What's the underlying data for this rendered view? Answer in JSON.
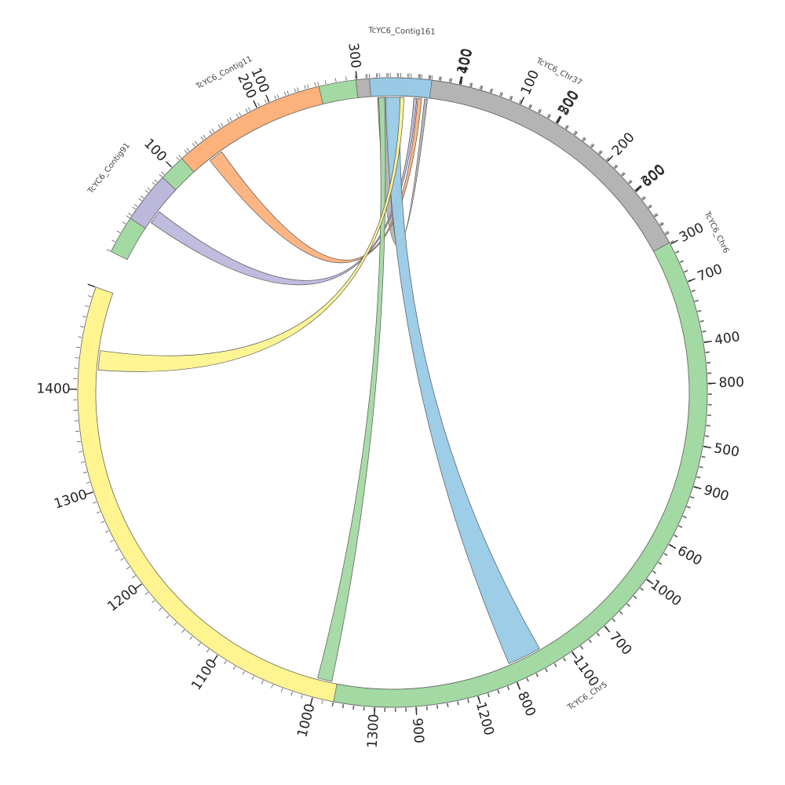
{
  "chart_data": {
    "type": "chord",
    "unit_degrees": 0.1897,
    "segments": [
      {
        "id": "TcYC6_Chr5",
        "label": "TcYC6_Chr5",
        "length": 1500,
        "color": "#fff48f",
        "start_angle": 5.0,
        "ticks": [
          100,
          200,
          300,
          400,
          500,
          600,
          700,
          800,
          900,
          1000,
          1100,
          1200,
          1300,
          1400
        ]
      },
      {
        "id": "TcYC6_Chr6",
        "label": "TcYC6_Chr6",
        "length": 1340,
        "color": "#a3d9a2",
        "start_angle": 296.6,
        "ticks": [
          100,
          200,
          300,
          400,
          500,
          600,
          700,
          800,
          900,
          1000,
          1100,
          1200,
          1300
        ]
      },
      {
        "id": "TcYC6_Contig91",
        "label": "TcYC6_Contig91",
        "length": 50,
        "color": "#bcb8dc",
        "start_angle": 303.6,
        "ticks": []
      },
      {
        "id": "TcYC6_Contig11",
        "label": "TcYC6_Contig11",
        "length": 150,
        "color": "#fdb27c",
        "start_angle": 318.0,
        "ticks": [
          100
        ]
      },
      {
        "id": "TcYC6_Chr37",
        "label": "TcYC6_Chr37",
        "length": 360,
        "color": "#b4b4b4",
        "start_angle": 353.3,
        "ticks": [
          100,
          200,
          300
        ]
      },
      {
        "id": "TcYC6_Contig161",
        "label": "TcYC6_Contig161",
        "length": 60,
        "color": "#98cae6",
        "start_angle": 355.8,
        "ticks": []
      }
    ],
    "links": [
      {
        "source": "TcYC6_Contig161",
        "s_start": 55,
        "s_end": 58,
        "target": "TcYC6_Chr37",
        "t_start": 20,
        "t_end": 30,
        "color": "#b4b4b4"
      },
      {
        "source": "TcYC6_Contig161",
        "s_start": 48,
        "s_end": 52,
        "target": "TcYC6_Contig11",
        "t_start": 20,
        "t_end": 35,
        "color": "#fdb27c"
      },
      {
        "source": "TcYC6_Contig161",
        "s_start": 44,
        "s_end": 47,
        "target": "TcYC6_Contig91",
        "t_start": 8,
        "t_end": 22,
        "color": "#bcb8dc"
      },
      {
        "source": "TcYC6_Contig161",
        "s_start": 15,
        "s_end": 30,
        "target": "TcYC6_Chr5",
        "t_start": 765,
        "t_end": 800,
        "color": "#98cae6"
      },
      {
        "source": "TcYC6_Contig161",
        "s_start": 8,
        "s_end": 14,
        "target": "TcYC6_Chr5",
        "t_start": 985,
        "t_end": 1000,
        "color": "#a3d9a2"
      },
      {
        "source": "TcYC6_Contig161",
        "s_start": 30,
        "s_end": 34,
        "target": "TcYC6_Chr5",
        "t_start": 1420,
        "t_end": 1440,
        "color": "#fff48f"
      }
    ],
    "center": {
      "x": 500,
      "y": 500
    },
    "legend": "none"
  }
}
